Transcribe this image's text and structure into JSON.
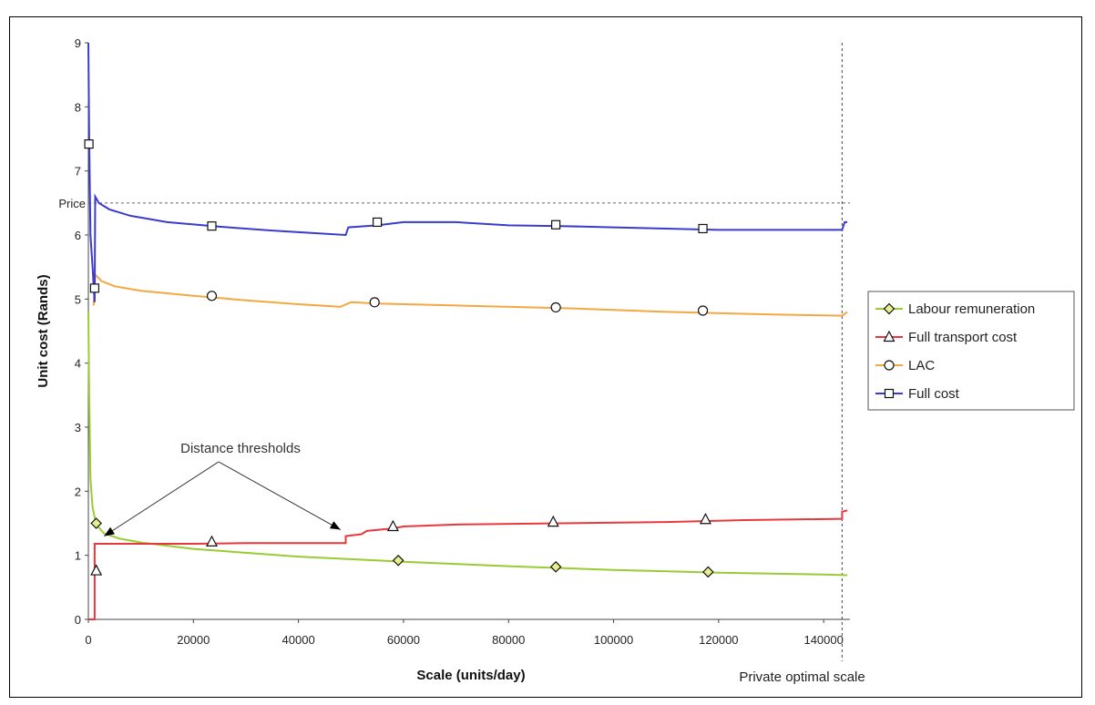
{
  "chart_data": {
    "type": "line",
    "xlabel": "Scale (units/day)",
    "ylabel": "Unit cost (Rands)",
    "xlim": [
      0,
      145000
    ],
    "ylim": [
      0,
      9
    ],
    "x_ticks": [
      0,
      20000,
      40000,
      60000,
      80000,
      100000,
      120000,
      140000
    ],
    "x_tick_labels": [
      "0",
      "20000",
      "40000",
      "60000",
      "80000",
      "100000",
      "120000",
      "140000"
    ],
    "y_ticks": [
      0,
      1,
      2,
      3,
      4,
      5,
      6,
      7,
      8,
      9
    ],
    "y_tick_labels": [
      "0",
      "1",
      "2",
      "3",
      "4",
      "5",
      "6",
      "7",
      "8",
      "9"
    ],
    "grid": false,
    "legend_position": "right",
    "reference_lines": {
      "price": {
        "label": "Price",
        "y": 6.5
      },
      "private_optimal_scale": {
        "label": "Private optimal scale",
        "x": 143500
      }
    },
    "annotation": {
      "text": "Distance thresholds",
      "arrow_targets": [
        [
          3000,
          1.3
        ],
        [
          48000,
          1.4
        ]
      ]
    },
    "series": [
      {
        "name": "Labour remuneration",
        "color": "#99cc33",
        "marker": "diamond",
        "line": [
          [
            0,
            4.8
          ],
          [
            150,
            3.5
          ],
          [
            400,
            2.2
          ],
          [
            800,
            1.75
          ],
          [
            1500,
            1.48
          ],
          [
            3000,
            1.34
          ],
          [
            6000,
            1.26
          ],
          [
            10000,
            1.2
          ],
          [
            20000,
            1.1
          ],
          [
            30000,
            1.04
          ],
          [
            40000,
            0.98
          ],
          [
            50000,
            0.94
          ],
          [
            60000,
            0.9
          ],
          [
            80000,
            0.83
          ],
          [
            100000,
            0.77
          ],
          [
            120000,
            0.73
          ],
          [
            140000,
            0.7
          ],
          [
            144500,
            0.69
          ]
        ],
        "markers": [
          [
            1500,
            1.5
          ],
          [
            59000,
            0.92
          ],
          [
            89000,
            0.82
          ],
          [
            118000,
            0.74
          ]
        ]
      },
      {
        "name": "Full transport cost",
        "color": "#e8383d",
        "marker": "triangle",
        "line": [
          [
            0,
            0
          ],
          [
            1200,
            0
          ],
          [
            1200,
            1.18
          ],
          [
            20000,
            1.18
          ],
          [
            30000,
            1.19
          ],
          [
            49000,
            1.19
          ],
          [
            49000,
            1.3
          ],
          [
            52000,
            1.33
          ],
          [
            53000,
            1.38
          ],
          [
            58000,
            1.42
          ],
          [
            60000,
            1.45
          ],
          [
            70000,
            1.48
          ],
          [
            90000,
            1.5
          ],
          [
            110000,
            1.52
          ],
          [
            125000,
            1.55
          ],
          [
            143500,
            1.57
          ],
          [
            143500,
            1.68
          ],
          [
            144500,
            1.7
          ]
        ],
        "markers": [
          [
            1500,
            0.76
          ],
          [
            23500,
            1.21
          ],
          [
            58000,
            1.45
          ],
          [
            88500,
            1.52
          ],
          [
            117500,
            1.56
          ]
        ]
      },
      {
        "name": "LAC",
        "color": "#f4a742",
        "marker": "circle",
        "line": [
          [
            1000,
            4.9
          ],
          [
            1300,
            5.38
          ],
          [
            2500,
            5.28
          ],
          [
            5000,
            5.2
          ],
          [
            10000,
            5.13
          ],
          [
            20000,
            5.05
          ],
          [
            30000,
            4.98
          ],
          [
            40000,
            4.92
          ],
          [
            48000,
            4.88
          ],
          [
            50000,
            4.95
          ],
          [
            55000,
            4.93
          ],
          [
            70000,
            4.9
          ],
          [
            90000,
            4.86
          ],
          [
            110000,
            4.8
          ],
          [
            130000,
            4.76
          ],
          [
            143500,
            4.74
          ],
          [
            144500,
            4.8
          ]
        ],
        "markers": [
          [
            23500,
            5.05
          ],
          [
            54500,
            4.95
          ],
          [
            89000,
            4.87
          ],
          [
            117000,
            4.82
          ]
        ]
      },
      {
        "name": "Full cost",
        "color": "#3b3bcc",
        "marker": "square",
        "line": [
          [
            0,
            9.0
          ],
          [
            150,
            7.5
          ],
          [
            400,
            6.0
          ],
          [
            800,
            5.5
          ],
          [
            1200,
            4.95
          ],
          [
            1300,
            6.6
          ],
          [
            2000,
            6.5
          ],
          [
            4000,
            6.4
          ],
          [
            8000,
            6.3
          ],
          [
            15000,
            6.2
          ],
          [
            25000,
            6.13
          ],
          [
            35000,
            6.07
          ],
          [
            45000,
            6.02
          ],
          [
            49000,
            6.0
          ],
          [
            49500,
            6.12
          ],
          [
            55000,
            6.15
          ],
          [
            60000,
            6.2
          ],
          [
            70000,
            6.2
          ],
          [
            80000,
            6.15
          ],
          [
            90000,
            6.14
          ],
          [
            100000,
            6.12
          ],
          [
            110000,
            6.1
          ],
          [
            120000,
            6.08
          ],
          [
            130000,
            6.08
          ],
          [
            143500,
            6.08
          ],
          [
            144000,
            6.2
          ],
          [
            144500,
            6.2
          ]
        ],
        "markers": [
          [
            100,
            7.42
          ],
          [
            1200,
            5.17
          ],
          [
            23500,
            6.14
          ],
          [
            55000,
            6.2
          ],
          [
            89000,
            6.16
          ],
          [
            117000,
            6.1
          ]
        ]
      }
    ]
  }
}
